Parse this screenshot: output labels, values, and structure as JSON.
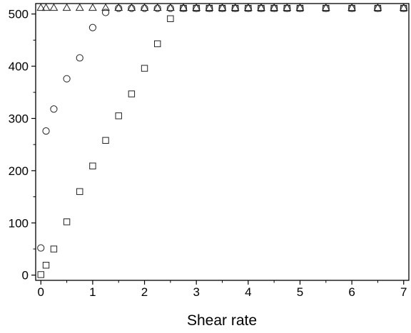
{
  "chart_data": {
    "type": "scatter",
    "title": "",
    "xlabel": "Shear rate",
    "ylabel": "",
    "xlim": [
      -0.1,
      7.1
    ],
    "ylim": [
      -10,
      520
    ],
    "x_ticks": [
      "0",
      "1",
      "2",
      "3",
      "4",
      "5",
      "6",
      "7"
    ],
    "y_ticks": [
      "0",
      "100",
      "200",
      "300",
      "400",
      "500"
    ],
    "grid": false,
    "legend": "none",
    "series": [
      {
        "marker": "triangle",
        "points": [
          [
            0,
            512
          ],
          [
            0.1,
            512
          ],
          [
            0.25,
            512
          ],
          [
            0.5,
            512
          ],
          [
            0.75,
            512
          ],
          [
            1,
            512
          ],
          [
            1.25,
            512
          ],
          [
            1.5,
            512
          ],
          [
            1.75,
            512
          ],
          [
            2,
            512
          ],
          [
            2.25,
            512
          ],
          [
            2.5,
            512
          ],
          [
            2.75,
            512
          ],
          [
            3,
            512
          ],
          [
            3.25,
            512
          ],
          [
            3.5,
            512
          ],
          [
            3.75,
            512
          ],
          [
            4,
            512
          ],
          [
            4.25,
            512
          ],
          [
            4.5,
            512
          ],
          [
            4.75,
            512
          ],
          [
            5,
            512
          ],
          [
            5.5,
            512
          ],
          [
            6,
            512
          ],
          [
            6.5,
            512
          ],
          [
            7,
            512
          ]
        ]
      },
      {
        "marker": "circle",
        "points": [
          [
            0,
            52
          ],
          [
            0.1,
            276
          ],
          [
            0.25,
            318
          ],
          [
            0.5,
            376
          ],
          [
            0.75,
            416
          ],
          [
            1,
            474
          ],
          [
            1.25,
            503
          ],
          [
            1.5,
            511
          ],
          [
            1.75,
            511
          ],
          [
            2,
            511
          ],
          [
            2.25,
            511
          ],
          [
            2.5,
            511
          ],
          [
            2.75,
            511
          ],
          [
            3,
            511
          ],
          [
            3.25,
            511
          ],
          [
            3.5,
            511
          ],
          [
            3.75,
            511
          ],
          [
            4,
            511
          ],
          [
            4.25,
            511
          ],
          [
            4.5,
            511
          ],
          [
            4.75,
            511
          ],
          [
            5,
            511
          ],
          [
            5.5,
            511
          ],
          [
            6,
            511
          ],
          [
            6.5,
            511
          ],
          [
            7,
            511
          ]
        ]
      },
      {
        "marker": "square",
        "points": [
          [
            0,
            1
          ],
          [
            0.1,
            19
          ],
          [
            0.25,
            50
          ],
          [
            0.5,
            102
          ],
          [
            0.75,
            160
          ],
          [
            1,
            209
          ],
          [
            1.25,
            258
          ],
          [
            1.5,
            305
          ],
          [
            1.75,
            347
          ],
          [
            2,
            396
          ],
          [
            2.25,
            443
          ],
          [
            2.5,
            491
          ],
          [
            2.75,
            511
          ],
          [
            3,
            511
          ],
          [
            3.25,
            511
          ],
          [
            3.5,
            511
          ],
          [
            3.75,
            511
          ],
          [
            4,
            511
          ],
          [
            4.25,
            511
          ],
          [
            4.5,
            511
          ],
          [
            4.75,
            511
          ],
          [
            5,
            511
          ],
          [
            5.5,
            511
          ],
          [
            6,
            511
          ],
          [
            6.5,
            511
          ],
          [
            7,
            511
          ]
        ]
      }
    ],
    "colors": {
      "axis": "#000000",
      "marker_stroke": "#222222",
      "background": "#ffffff"
    }
  }
}
